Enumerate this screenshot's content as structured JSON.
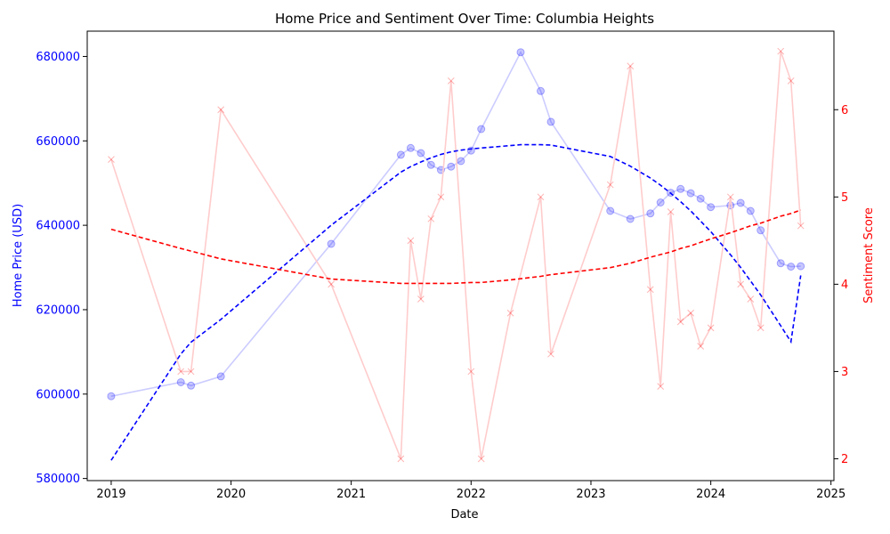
{
  "chart_data": {
    "type": "line",
    "title": "Home Price and Sentiment Over Time: Columbia Heights",
    "xlabel": "Date",
    "ylabel_left": "Home Price (USD)",
    "ylabel_right": "Sentiment Score",
    "x_ticks": [
      "2019",
      "2020",
      "2021",
      "2022",
      "2023",
      "2024",
      "2025"
    ],
    "y_left_ticks": [
      580000,
      600000,
      620000,
      640000,
      660000,
      680000
    ],
    "y_right_ticks": [
      2,
      3,
      4,
      5,
      6
    ],
    "xlim": [
      "2018-10-20",
      "2025-01-10"
    ],
    "ylim_left": [
      579500,
      686000
    ],
    "ylim_right": [
      1.75,
      6.9
    ],
    "colors": {
      "price": "#0000ff",
      "sentiment": "#ff0000",
      "price_line": "#ccccff",
      "sentiment_line": "#ffcccc"
    },
    "series": [
      {
        "name": "Home Price (USD)",
        "axis": "left",
        "marker": "circle",
        "x": [
          "2019-01-01",
          "2019-08-01",
          "2019-09-01",
          "2019-12-01",
          "2020-11-01",
          "2021-06-01",
          "2021-07-01",
          "2021-08-01",
          "2021-09-01",
          "2021-10-01",
          "2021-11-01",
          "2021-12-01",
          "2022-01-01",
          "2022-02-01",
          "2022-06-01",
          "2022-08-01",
          "2022-09-01",
          "2023-03-01",
          "2023-05-01",
          "2023-07-01",
          "2023-08-01",
          "2023-09-01",
          "2023-10-01",
          "2023-11-01",
          "2023-12-01",
          "2024-01-01",
          "2024-03-01",
          "2024-04-01",
          "2024-05-01",
          "2024-06-01",
          "2024-08-01",
          "2024-09-01",
          "2024-10-01"
        ],
        "values": [
          599500,
          602800,
          602000,
          604200,
          635600,
          656700,
          658300,
          657100,
          654300,
          653100,
          653900,
          655200,
          657700,
          662800,
          681000,
          671800,
          664500,
          643400,
          641500,
          642800,
          645400,
          647700,
          648600,
          647600,
          646300,
          644300,
          644700,
          645300,
          643400,
          638800,
          631000,
          630200,
          630300
        ]
      },
      {
        "name": "Sentiment Score",
        "axis": "right",
        "marker": "x",
        "x": [
          "2019-01-01",
          "2019-08-01",
          "2019-09-01",
          "2019-12-01",
          "2020-11-01",
          "2021-06-01",
          "2021-07-01",
          "2021-08-01",
          "2021-09-01",
          "2021-10-01",
          "2021-11-01",
          "2022-01-01",
          "2022-02-01",
          "2022-05-01",
          "2022-08-01",
          "2022-09-01",
          "2023-03-01",
          "2023-05-01",
          "2023-07-01",
          "2023-08-01",
          "2023-09-01",
          "2023-10-01",
          "2023-11-01",
          "2023-12-01",
          "2024-01-01",
          "2024-03-01",
          "2024-04-01",
          "2024-05-01",
          "2024-06-01",
          "2024-08-01",
          "2024-09-01",
          "2024-10-01"
        ],
        "values": [
          5.43,
          3.0,
          3.0,
          6.0,
          4.0,
          2.0,
          4.5,
          3.83,
          4.75,
          5.0,
          6.33,
          3.0,
          2.0,
          3.67,
          5.0,
          3.2,
          5.14,
          6.5,
          3.94,
          2.83,
          4.83,
          3.57,
          3.67,
          3.29,
          3.5,
          5.0,
          4.0,
          3.83,
          3.5,
          6.67,
          6.33,
          4.67
        ]
      },
      {
        "name": "Home Price trend",
        "axis": "left",
        "style": "dashed",
        "x": [
          "2019-01-01",
          "2019-08-01",
          "2019-09-01",
          "2019-12-01",
          "2020-11-01",
          "2021-06-01",
          "2021-07-01",
          "2021-08-01",
          "2021-09-01",
          "2021-10-01",
          "2021-11-01",
          "2021-12-01",
          "2022-01-01",
          "2022-02-01",
          "2022-06-01",
          "2022-08-01",
          "2022-09-01",
          "2023-03-01",
          "2023-05-01",
          "2023-07-01",
          "2023-08-01",
          "2023-09-01",
          "2023-10-01",
          "2023-11-01",
          "2023-12-01",
          "2024-01-01",
          "2024-03-01",
          "2024-04-01",
          "2024-05-01",
          "2024-06-01",
          "2024-08-01",
          "2024-09-01",
          "2024-10-01"
        ],
        "values": [
          584300,
          609500,
          612300,
          617700,
          640000,
          652600,
          653900,
          655000,
          656000,
          656800,
          657400,
          657800,
          658100,
          658300,
          659100,
          659100,
          659000,
          656300,
          654000,
          651200,
          649500,
          647600,
          645600,
          643400,
          641000,
          638500,
          633000,
          630000,
          626800,
          623500,
          616200,
          612400,
          628100
        ]
      },
      {
        "name": "Sentiment trend",
        "axis": "right",
        "style": "dashed",
        "x": [
          "2019-01-01",
          "2019-08-01",
          "2019-09-01",
          "2019-12-01",
          "2020-11-01",
          "2021-06-01",
          "2021-07-01",
          "2021-08-01",
          "2021-09-01",
          "2021-10-01",
          "2021-11-01",
          "2022-01-01",
          "2022-02-01",
          "2022-05-01",
          "2022-08-01",
          "2022-09-01",
          "2023-03-01",
          "2023-05-01",
          "2023-07-01",
          "2023-08-01",
          "2023-09-01",
          "2023-10-01",
          "2023-11-01",
          "2023-12-01",
          "2024-01-01",
          "2024-03-01",
          "2024-04-01",
          "2024-05-01",
          "2024-06-01",
          "2024-08-01",
          "2024-09-01",
          "2024-10-01"
        ],
        "values": [
          4.63,
          4.41,
          4.38,
          4.29,
          4.06,
          4.01,
          4.01,
          4.01,
          4.01,
          4.01,
          4.01,
          4.02,
          4.02,
          4.05,
          4.09,
          4.11,
          4.19,
          4.24,
          4.31,
          4.34,
          4.37,
          4.41,
          4.44,
          4.48,
          4.52,
          4.59,
          4.63,
          4.67,
          4.7,
          4.78,
          4.81,
          4.85
        ]
      }
    ]
  }
}
